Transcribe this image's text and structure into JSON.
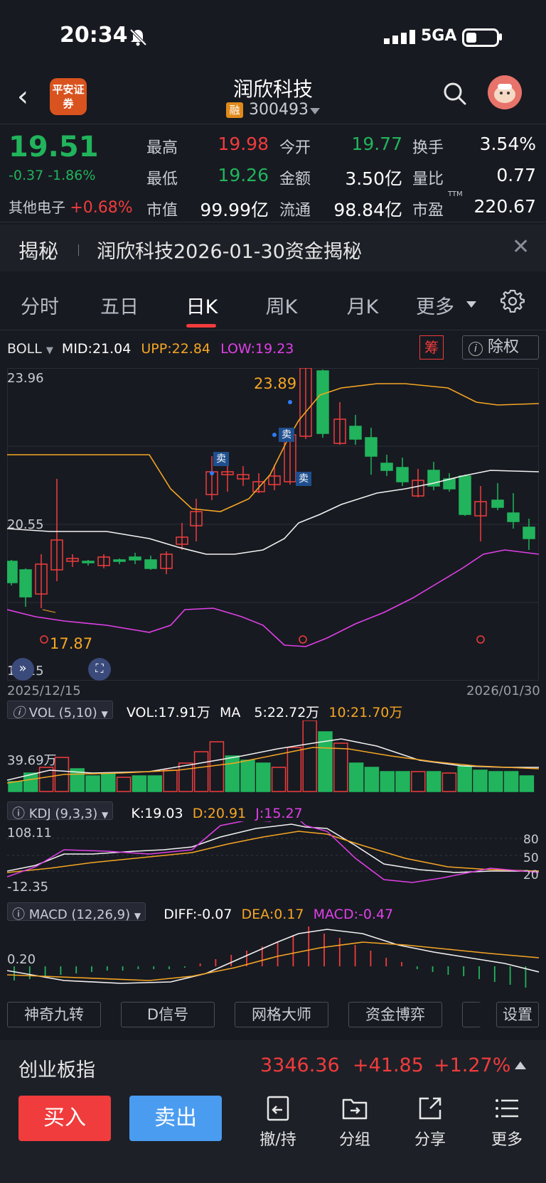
{
  "status": {
    "time": "20:34",
    "network": "5GA",
    "icons": [
      "mute-bell-icon",
      "signal-icon",
      "battery-icon"
    ]
  },
  "header": {
    "logo_text": "平安证券",
    "title": "润欣科技",
    "rong": "融",
    "code": "300493"
  },
  "quote": {
    "price": "19.51",
    "change": "-0.37 -1.86%",
    "sector_label": "其他电子",
    "sector_change": "+0.68%",
    "stats": [
      {
        "label": "最高",
        "value": "19.98",
        "color": "red"
      },
      {
        "label": "今开",
        "value": "19.77",
        "color": "green"
      },
      {
        "label": "换手",
        "value": "3.54%",
        "color": "white"
      },
      {
        "label": "最低",
        "value": "19.26",
        "color": "green"
      },
      {
        "label": "金额",
        "value": "3.50亿",
        "color": "white"
      },
      {
        "label": "量比",
        "value": "0.77",
        "color": "white"
      },
      {
        "label": "市值",
        "value": "99.99亿",
        "color": "white"
      },
      {
        "label": "流通",
        "value": "98.84亿",
        "color": "white"
      },
      {
        "label": "市盈",
        "value": "220.67",
        "color": "white"
      }
    ],
    "pe_sup": "TTM"
  },
  "banner": {
    "tag": "揭秘",
    "text": "润欣科技2026-01-30资金揭秘"
  },
  "tabs": [
    "分时",
    "五日",
    "日K",
    "周K",
    "月K",
    "更多"
  ],
  "active_tab": "日K",
  "boll": {
    "name": "BOLL",
    "mid": "MID:21.04",
    "upp": "UPP:22.84",
    "low": "LOW:19.23",
    "chou": "筹",
    "chuquan": "除权"
  },
  "kline": {
    "y_top": "23.96",
    "y_mid": "20.55",
    "y_bot": "17.15",
    "high_label": "23.89",
    "low_label": "17.87",
    "date_start": "2025/12/15",
    "date_end": "2026/01/30",
    "sell_marks": [
      "卖",
      "卖",
      "卖"
    ]
  },
  "vol": {
    "name": "VOL (5,10)",
    "vol": "VOL:17.91万",
    "ma": "MA",
    "ma5": "5:22.72万",
    "ma10": "10:21.70万",
    "y_label": "39.69万"
  },
  "kdj": {
    "name": "KDJ (9,3,3)",
    "k": "K:19.03",
    "d": "D:20.91",
    "j": "J:15.27",
    "y_top": "108.11",
    "y_bot": "-12.35",
    "levels": [
      "80",
      "50",
      "20"
    ]
  },
  "macd": {
    "name": "MACD (12,26,9)",
    "diff": "DIFF:-0.07",
    "dea": "DEA:0.17",
    "macd": "MACD:-0.47",
    "y_label": "0.20"
  },
  "chips": [
    "神奇九转",
    "D信号",
    "网格大师",
    "资金博弈",
    "设置"
  ],
  "index": {
    "name": "创业板指",
    "value": "3346.36",
    "change": "+41.85",
    "pct": "+1.27%"
  },
  "bottom": {
    "buy": "买入",
    "sell": "卖出",
    "items": [
      "撤/持",
      "分组",
      "分享",
      "更多"
    ]
  }
}
